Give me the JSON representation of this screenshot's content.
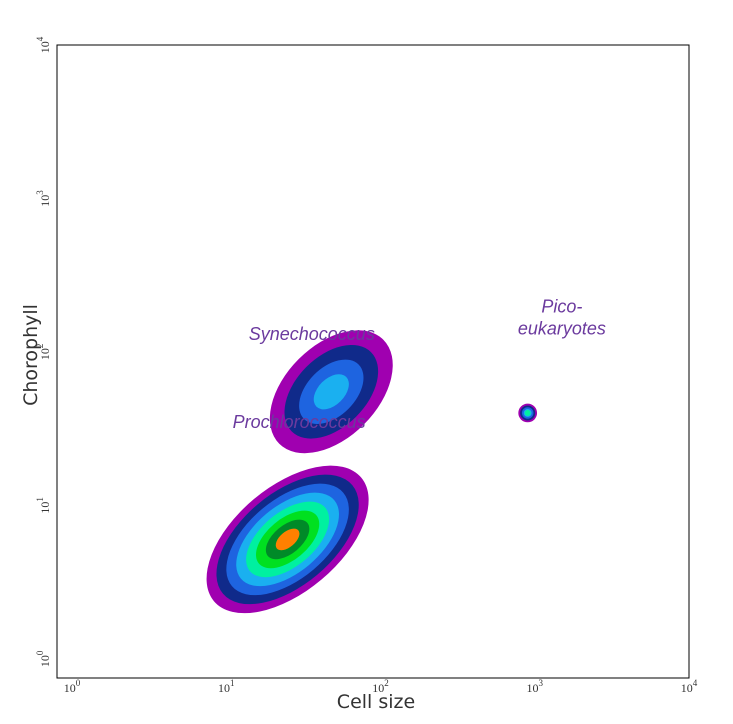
{
  "chart_data": {
    "type": "heatmap",
    "title": "",
    "xlabel": "Cell size",
    "ylabel": "Chorophyll",
    "x_scale": "log",
    "y_scale": "log",
    "xlim": [
      0.8,
      10000
    ],
    "ylim": [
      0.75,
      10000
    ],
    "x_ticks": [
      {
        "value": 1,
        "base": "10",
        "exp": "0"
      },
      {
        "value": 10,
        "base": "10",
        "exp": "1"
      },
      {
        "value": 100,
        "base": "10",
        "exp": "2"
      },
      {
        "value": 1000,
        "base": "10",
        "exp": "3"
      },
      {
        "value": 10000,
        "base": "10",
        "exp": "4"
      }
    ],
    "y_ticks": [
      {
        "value": 1,
        "base": "10",
        "exp": "0"
      },
      {
        "value": 10,
        "base": "10",
        "exp": "1"
      },
      {
        "value": 100,
        "base": "10",
        "exp": "2"
      },
      {
        "value": 1000,
        "base": "10",
        "exp": "3"
      },
      {
        "value": 10000,
        "base": "10",
        "exp": "4"
      }
    ],
    "grid": false,
    "density_palette": [
      "#a000b0",
      "#102a8a",
      "#1e64e0",
      "#1ab0f0",
      "#00f0a0",
      "#00e020",
      "#008a28",
      "#ff8000"
    ],
    "populations": [
      {
        "name": "Prochlorococcus",
        "center": [
          25,
          6
        ],
        "spread": [
          4.2,
          2.2
        ],
        "angle_deg": 40,
        "peak_level": 7,
        "annotation": {
          "text": "Prochlorococcus",
          "x": 11,
          "y": 32
        }
      },
      {
        "name": "Synechococcus",
        "center": [
          48,
          55
        ],
        "spread": [
          3.0,
          2.0
        ],
        "angle_deg": 45,
        "peak_level": 3,
        "annotation": {
          "text": "Synechococcus",
          "x": 14,
          "y": 120
        }
      },
      {
        "name": "Pico-eukaryotes",
        "center": [
          900,
          40
        ],
        "spread": [
          1.15,
          1.15
        ],
        "angle_deg": 0,
        "peak_level": 4,
        "annotation": {
          "lines": [
            "Pico-",
            "eukaryotes"
          ],
          "x": 1500,
          "y": 180
        }
      }
    ]
  }
}
